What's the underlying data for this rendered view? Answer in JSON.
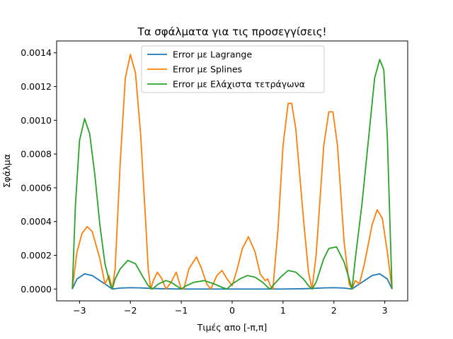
{
  "chart_data": {
    "type": "line",
    "title": "Τα σφάλματα για τις προσεγγίσεις!",
    "xlabel": "Τιμές απο [-π,π]",
    "ylabel": "Σφάλμα",
    "xlim": [
      -3.45,
      3.45
    ],
    "ylim": [
      -7e-05,
      0.00147
    ],
    "x_ticks": [
      -3,
      -2,
      -1,
      0,
      1,
      2,
      3
    ],
    "x_tick_labels": [
      "−3",
      "−2",
      "−1",
      "0",
      "1",
      "2",
      "3"
    ],
    "y_ticks": [
      0,
      0.0002,
      0.0004,
      0.0006,
      0.0008,
      0.001,
      0.0012,
      0.0014
    ],
    "y_tick_labels": [
      "0.0000",
      "0.0002",
      "0.0004",
      "0.0006",
      "0.0008",
      "0.0010",
      "0.0012",
      "0.0014"
    ],
    "grid": false,
    "legend_position": "top-center",
    "series": [
      {
        "name": "Error με Lagrange",
        "color": "#1f77b4",
        "x": [
          -3.1416,
          -3.05,
          -2.9,
          -2.75,
          -2.6,
          -2.45,
          -2.356,
          -2.2,
          -2.0,
          -1.8,
          -1.6,
          -1.4,
          -1.2,
          -1.0,
          -0.5,
          0.0,
          0.5,
          1.0,
          1.2,
          1.4,
          1.6,
          1.8,
          2.0,
          2.2,
          2.356,
          2.45,
          2.6,
          2.75,
          2.9,
          3.05,
          3.1416
        ],
        "y": [
          0,
          6e-05,
          9e-05,
          8e-05,
          5e-05,
          2e-05,
          0,
          6e-06,
          8e-06,
          7e-06,
          4e-06,
          2e-06,
          1e-06,
          0,
          0,
          0,
          0,
          0,
          1e-06,
          2e-06,
          4e-06,
          7e-06,
          8e-06,
          6e-06,
          0,
          2e-05,
          5e-05,
          8e-05,
          9e-05,
          6e-05,
          0
        ]
      },
      {
        "name": "Error με Splines",
        "color": "#ff7f0e",
        "x": [
          -3.1416,
          -3.05,
          -2.95,
          -2.85,
          -2.75,
          -2.6,
          -2.5,
          -2.42,
          -2.356,
          -2.3,
          -2.2,
          -2.1,
          -2.0,
          -1.9,
          -1.8,
          -1.7,
          -1.65,
          -1.6,
          -1.55,
          -1.47,
          -1.38,
          -1.3,
          -1.2,
          -1.1,
          -1.0,
          -0.95,
          -0.85,
          -0.7,
          -0.6,
          -0.5,
          -0.42,
          -0.3,
          -0.2,
          -0.1,
          0.0,
          0.1,
          0.2,
          0.32,
          0.45,
          0.55,
          0.65,
          0.7,
          0.75,
          0.8,
          0.9,
          1.0,
          1.1,
          1.17,
          1.25,
          1.4,
          1.5,
          1.57,
          1.65,
          1.8,
          1.9,
          1.98,
          2.07,
          2.2,
          2.3,
          2.356,
          2.42,
          2.5,
          2.6,
          2.75,
          2.85,
          2.95,
          3.05,
          3.1416
        ],
        "y": [
          0,
          0.00022,
          0.00033,
          0.00037,
          0.00034,
          0.00018,
          3e-05,
          8e-05,
          0,
          0.00012,
          0.00075,
          0.00125,
          0.00139,
          0.00128,
          0.00092,
          0.0004,
          0.00012,
          0,
          5e-05,
          0.0001,
          6e-05,
          0.0,
          4e-05,
          0.0001,
          0.0,
          0.0,
          0.00012,
          0.00019,
          0.00012,
          3e-05,
          0,
          8e-05,
          0.00011,
          6e-05,
          2e-05,
          0.00012,
          0.00024,
          0.00031,
          0.00022,
          9e-05,
          5e-05,
          6e-05,
          2e-05,
          0,
          0.00035,
          0.00085,
          0.0011,
          0.0011,
          0.00095,
          0.00042,
          0.0001,
          0,
          0.0002,
          0.00085,
          0.00105,
          0.00105,
          0.00085,
          0.00028,
          3e-05,
          0,
          5e-05,
          3e-05,
          0.00015,
          0.00038,
          0.00047,
          0.00042,
          0.00022,
          0
        ]
      },
      {
        "name": "Error με Ελάχιστα τετράγωνα",
        "color": "#2ca02c",
        "x": [
          -3.1416,
          -3.08,
          -3.0,
          -2.9,
          -2.8,
          -2.7,
          -2.6,
          -2.5,
          -2.4,
          -2.356,
          -2.3,
          -2.2,
          -2.05,
          -1.9,
          -1.75,
          -1.65,
          -1.57,
          -1.45,
          -1.3,
          -1.2,
          -1.1,
          -1.0,
          -0.9,
          -0.75,
          -0.55,
          -0.35,
          -0.2,
          -0.1,
          0.0,
          0.15,
          0.3,
          0.45,
          0.6,
          0.7,
          0.75,
          0.8,
          0.95,
          1.1,
          1.25,
          1.4,
          1.5,
          1.57,
          1.65,
          1.8,
          1.9,
          2.05,
          2.2,
          2.3,
          2.356,
          2.42,
          2.55,
          2.7,
          2.8,
          2.9,
          2.98,
          3.05,
          3.1,
          3.1416
        ],
        "y": [
          0,
          0.0005,
          0.00088,
          0.00101,
          0.00092,
          0.00068,
          0.00038,
          0.00015,
          3e-05,
          0,
          6e-05,
          0.00012,
          0.00017,
          0.00015,
          7e-05,
          2e-05,
          0,
          3e-05,
          5e-05,
          4e-05,
          2e-05,
          0.0,
          2e-05,
          4e-05,
          5e-05,
          3e-05,
          1e-05,
          0,
          3e-05,
          6e-05,
          8e-05,
          7e-05,
          4e-05,
          1e-05,
          0,
          2e-05,
          7e-05,
          0.00011,
          0.0001,
          6e-05,
          2e-05,
          0,
          4e-05,
          0.00018,
          0.00024,
          0.00025,
          0.00016,
          6e-05,
          0,
          0.00018,
          0.0005,
          0.00095,
          0.00125,
          0.00136,
          0.0013,
          0.0009,
          0.0004,
          0
        ]
      }
    ]
  }
}
